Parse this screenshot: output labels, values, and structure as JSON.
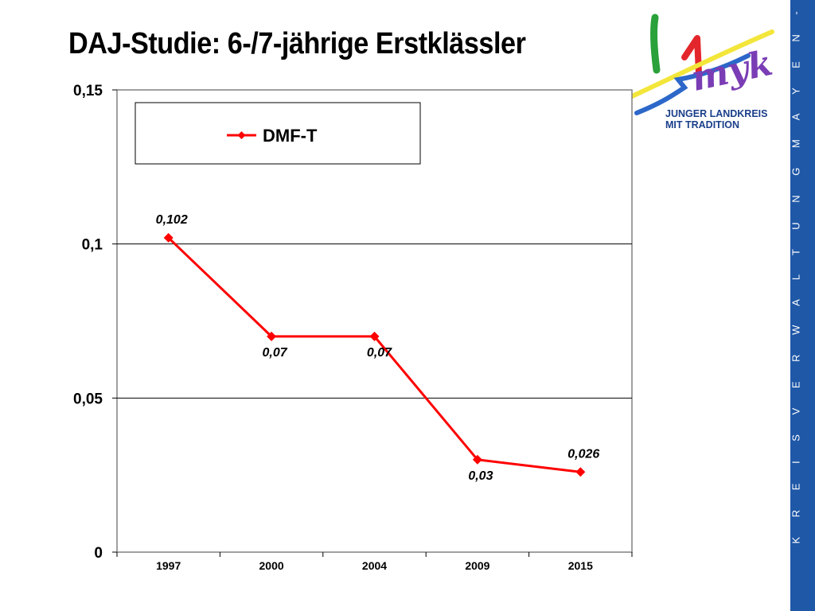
{
  "slide": {
    "title": "DAJ-Studie:  6-/7-jährige Erstklässler",
    "sidebar_text": "K R E I S V E R W A L T U N G   M A Y E N - K O B L E N Z",
    "logo": {
      "mark": "myk",
      "line1": "JUNGER LANDKREIS",
      "line2": "MIT TRADITION"
    },
    "colors": {
      "sidebar": "#1f58a7",
      "series": "#ff0000"
    }
  },
  "chart_data": {
    "type": "line",
    "categories": [
      "1997",
      "2000",
      "2004",
      "2009",
      "2015"
    ],
    "series": [
      {
        "name": "DMF-T",
        "values": [
          0.102,
          0.07,
          0.07,
          0.03,
          0.026
        ],
        "color": "#ff0000"
      }
    ],
    "data_labels": [
      "0,102",
      "0,07",
      "0,07",
      "0,03",
      "0,026"
    ],
    "y_ticks": [
      0,
      0.05,
      0.1,
      0.15
    ],
    "y_tick_labels": [
      "0",
      "0,05",
      "0,1",
      "0,15"
    ],
    "ylim": [
      0,
      0.15
    ],
    "grid": true,
    "legend_position": "top-left"
  }
}
